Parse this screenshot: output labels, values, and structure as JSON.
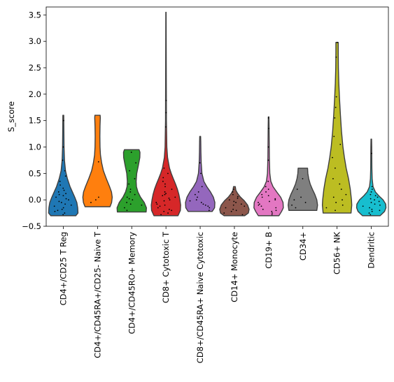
{
  "chart_data": {
    "type": "violin",
    "title": "",
    "xlabel": "",
    "ylabel": "S_score",
    "ylim": [
      -0.5,
      3.65
    ],
    "yticks": [
      -0.5,
      0.0,
      0.5,
      1.0,
      1.5,
      2.0,
      2.5,
      3.0,
      3.5
    ],
    "ytick_labels": [
      "−0.5",
      "0.0",
      "0.5",
      "1.0",
      "1.5",
      "2.0",
      "2.5",
      "3.0",
      "3.5"
    ],
    "grid": false,
    "legend": "none",
    "categories": [
      "CD4+/CD25 T Reg",
      "CD4+/CD45RA+/CD25- Naive T",
      "CD4+/CD45RO+ Memory",
      "CD8+ Cytotoxic T",
      "CD8+/CD45RA+ Naive Cytotoxic",
      "CD14+ Monocyte",
      "CD19+ B",
      "CD34+",
      "CD56+ NK",
      "Dendritic"
    ],
    "colors": [
      "#1f77b4",
      "#ff7f0e",
      "#2ca02c",
      "#d62728",
      "#9467bd",
      "#8c564b",
      "#e377c2",
      "#7f7f7f",
      "#bcbd22",
      "#17becf"
    ],
    "violins": [
      {
        "min": -0.3,
        "max": 1.6,
        "profile": [
          [
            -0.3,
            0.85
          ],
          [
            -0.25,
            1.0
          ],
          [
            -0.15,
            0.98
          ],
          [
            -0.05,
            0.92
          ],
          [
            0.05,
            0.78
          ],
          [
            0.15,
            0.62
          ],
          [
            0.25,
            0.46
          ],
          [
            0.4,
            0.28
          ],
          [
            0.55,
            0.15
          ],
          [
            0.75,
            0.08
          ],
          [
            1.0,
            0.05
          ],
          [
            1.3,
            0.04
          ],
          [
            1.6,
            0.03
          ]
        ],
        "points": [
          -0.28,
          -0.25,
          -0.22,
          -0.2,
          -0.18,
          -0.15,
          -0.12,
          -0.1,
          -0.08,
          -0.05,
          -0.03,
          0.0,
          0.02,
          0.05,
          0.08,
          0.1,
          0.12,
          0.15,
          0.18,
          0.22,
          0.28,
          0.35,
          0.45,
          0.55,
          0.75,
          1.0,
          1.5
        ]
      },
      {
        "min": -0.13,
        "max": 1.6,
        "profile": [
          [
            -0.13,
            0.85
          ],
          [
            -0.05,
            0.96
          ],
          [
            0.05,
            1.0
          ],
          [
            0.15,
            0.95
          ],
          [
            0.25,
            0.82
          ],
          [
            0.4,
            0.6
          ],
          [
            0.55,
            0.4
          ],
          [
            0.7,
            0.28
          ],
          [
            0.85,
            0.2
          ],
          [
            1.0,
            0.17
          ],
          [
            1.2,
            0.16
          ],
          [
            1.4,
            0.17
          ],
          [
            1.55,
            0.19
          ],
          [
            1.6,
            0.18
          ]
        ],
        "points": [
          -0.05,
          0.0,
          0.05,
          0.72
        ]
      },
      {
        "min": -0.23,
        "max": 0.95,
        "profile": [
          [
            -0.23,
            0.98
          ],
          [
            -0.15,
            1.0
          ],
          [
            -0.05,
            0.85
          ],
          [
            0.05,
            0.6
          ],
          [
            0.15,
            0.42
          ],
          [
            0.25,
            0.32
          ],
          [
            0.35,
            0.3
          ],
          [
            0.5,
            0.34
          ],
          [
            0.65,
            0.45
          ],
          [
            0.8,
            0.55
          ],
          [
            0.9,
            0.56
          ],
          [
            0.95,
            0.5
          ]
        ],
        "points": [
          -0.2,
          -0.15,
          -0.1,
          -0.08,
          -0.05,
          0.0,
          0.02,
          0.05,
          0.1,
          0.15,
          0.2,
          0.3,
          0.4,
          0.55,
          0.7,
          0.9
        ]
      },
      {
        "min": -0.3,
        "max": 3.55,
        "profile": [
          [
            -0.3,
            0.82
          ],
          [
            -0.2,
            0.98
          ],
          [
            -0.1,
            1.0
          ],
          [
            0.0,
            0.95
          ],
          [
            0.1,
            0.88
          ],
          [
            0.2,
            0.78
          ],
          [
            0.3,
            0.65
          ],
          [
            0.4,
            0.5
          ],
          [
            0.5,
            0.36
          ],
          [
            0.6,
            0.24
          ],
          [
            0.8,
            0.11
          ],
          [
            1.0,
            0.06
          ],
          [
            1.5,
            0.03
          ],
          [
            2.0,
            0.025
          ],
          [
            2.5,
            0.02
          ],
          [
            3.0,
            0.015
          ],
          [
            3.55,
            0.01
          ]
        ],
        "points": [
          -0.28,
          -0.25,
          -0.22,
          -0.2,
          -0.18,
          -0.15,
          -0.12,
          -0.1,
          -0.08,
          -0.05,
          -0.02,
          0.0,
          0.03,
          0.05,
          0.08,
          0.1,
          0.12,
          0.15,
          0.2,
          0.25,
          0.3,
          0.35,
          0.42,
          0.5,
          0.6,
          1.38,
          1.65,
          1.88
        ]
      },
      {
        "min": -0.22,
        "max": 1.2,
        "profile": [
          [
            -0.22,
            0.82
          ],
          [
            -0.15,
            0.98
          ],
          [
            -0.05,
            1.0
          ],
          [
            0.05,
            0.9
          ],
          [
            0.15,
            0.7
          ],
          [
            0.25,
            0.45
          ],
          [
            0.35,
            0.25
          ],
          [
            0.5,
            0.12
          ],
          [
            0.7,
            0.07
          ],
          [
            0.9,
            0.05
          ],
          [
            1.1,
            0.04
          ],
          [
            1.2,
            0.03
          ]
        ],
        "points": [
          -0.2,
          -0.15,
          -0.12,
          -0.1,
          -0.08,
          -0.05,
          -0.02,
          0.0,
          0.05,
          0.1,
          0.15,
          0.25,
          0.5,
          0.7
        ]
      },
      {
        "min": -0.3,
        "max": 0.25,
        "profile": [
          [
            -0.3,
            0.7
          ],
          [
            -0.25,
            0.95
          ],
          [
            -0.18,
            1.0
          ],
          [
            -0.1,
            0.9
          ],
          [
            -0.02,
            0.68
          ],
          [
            0.05,
            0.42
          ],
          [
            0.12,
            0.22
          ],
          [
            0.18,
            0.1
          ],
          [
            0.25,
            0.06
          ]
        ],
        "points": [
          -0.28,
          -0.25,
          -0.22,
          -0.2,
          -0.18,
          -0.15,
          -0.12,
          -0.1,
          -0.08,
          -0.05,
          -0.03,
          0.0,
          0.03,
          0.06,
          0.1,
          0.15,
          0.2
        ]
      },
      {
        "min": -0.3,
        "max": 1.57,
        "profile": [
          [
            -0.3,
            0.7
          ],
          [
            -0.22,
            0.88
          ],
          [
            -0.15,
            1.0
          ],
          [
            -0.05,
            0.98
          ],
          [
            0.05,
            0.82
          ],
          [
            0.15,
            0.55
          ],
          [
            0.25,
            0.3
          ],
          [
            0.35,
            0.15
          ],
          [
            0.5,
            0.08
          ],
          [
            0.8,
            0.05
          ],
          [
            1.1,
            0.04
          ],
          [
            1.4,
            0.03
          ],
          [
            1.57,
            0.02
          ]
        ],
        "points": [
          -0.28,
          -0.25,
          -0.22,
          -0.2,
          -0.18,
          -0.15,
          -0.12,
          -0.1,
          -0.08,
          -0.05,
          -0.03,
          0.0,
          0.02,
          0.05,
          0.08,
          0.1,
          0.15,
          0.2,
          0.25,
          0.35,
          0.75,
          1.0,
          1.35,
          1.55
        ]
      },
      {
        "min": -0.2,
        "max": 0.6,
        "profile": [
          [
            -0.2,
            0.95
          ],
          [
            -0.1,
            1.0
          ],
          [
            0.0,
            0.95
          ],
          [
            0.1,
            0.82
          ],
          [
            0.2,
            0.65
          ],
          [
            0.3,
            0.5
          ],
          [
            0.4,
            0.4
          ],
          [
            0.5,
            0.34
          ],
          [
            0.6,
            0.32
          ]
        ],
        "points": [
          -0.15,
          -0.1,
          -0.05,
          0.0,
          0.05,
          0.2,
          0.4
        ]
      },
      {
        "min": -0.25,
        "max": 2.98,
        "profile": [
          [
            -0.25,
            0.95
          ],
          [
            -0.1,
            1.0
          ],
          [
            0.0,
            0.98
          ],
          [
            0.2,
            0.9
          ],
          [
            0.4,
            0.78
          ],
          [
            0.6,
            0.62
          ],
          [
            0.8,
            0.5
          ],
          [
            1.0,
            0.4
          ],
          [
            1.3,
            0.3
          ],
          [
            1.6,
            0.23
          ],
          [
            1.9,
            0.17
          ],
          [
            2.2,
            0.12
          ],
          [
            2.5,
            0.09
          ],
          [
            2.8,
            0.08
          ],
          [
            2.98,
            0.08
          ]
        ],
        "points": [
          -0.2,
          -0.15,
          -0.1,
          -0.05,
          0.0,
          0.05,
          0.1,
          0.2,
          0.3,
          0.4,
          0.6,
          0.8,
          1.05,
          1.2,
          1.55,
          1.75,
          1.95,
          2.7,
          2.98
        ]
      },
      {
        "min": -0.3,
        "max": 1.15,
        "profile": [
          [
            -0.3,
            0.6
          ],
          [
            -0.22,
            0.9
          ],
          [
            -0.15,
            1.0
          ],
          [
            -0.08,
            0.98
          ],
          [
            0.0,
            0.8
          ],
          [
            0.08,
            0.5
          ],
          [
            0.15,
            0.28
          ],
          [
            0.25,
            0.12
          ],
          [
            0.4,
            0.06
          ],
          [
            0.6,
            0.04
          ],
          [
            0.8,
            0.035
          ],
          [
            1.0,
            0.03
          ],
          [
            1.15,
            0.02
          ]
        ],
        "points": [
          -0.28,
          -0.25,
          -0.22,
          -0.2,
          -0.18,
          -0.15,
          -0.12,
          -0.1,
          -0.08,
          -0.05,
          -0.03,
          0.0,
          0.02,
          0.05,
          0.08,
          0.1,
          0.15,
          0.2,
          0.25,
          0.88
        ]
      }
    ]
  }
}
